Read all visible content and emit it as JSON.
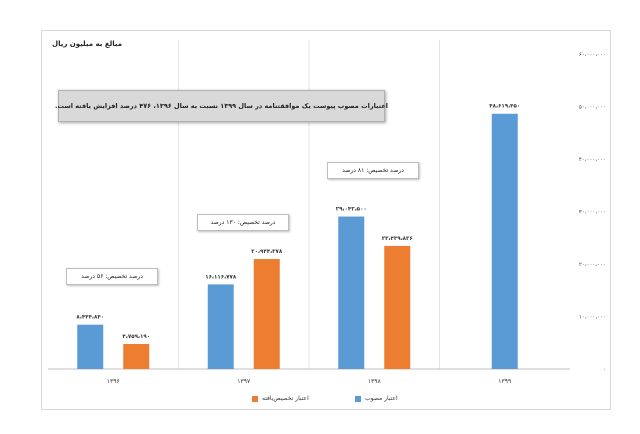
{
  "chart_data": {
    "type": "bar",
    "unit_label": "مبالغ به میلیون ریال",
    "categories": [
      "۱۳۹۶",
      "۱۳۹۷",
      "۱۳۹۸",
      "۱۳۹۹"
    ],
    "series": [
      {
        "name": "اعتبار مصوب",
        "color": "#5b9bd5",
        "values": [
          8444840,
          16116778,
          29042500,
          48619450
        ],
        "labels": [
          "۸،۴۴۴،۸۴۰",
          "۱۶،۱۱۶،۷۷۸",
          "۲۹،۰۴۲،۵۰۰",
          "۴۸،۶۱۹،۴۵۰"
        ]
      },
      {
        "name": "اعتبار تخصیص‌یافته",
        "color": "#ed7d31",
        "values": [
          4759190,
          20944378,
          23439826,
          null
        ],
        "labels": [
          "۴،۷۵۹،۱۹۰",
          "۲۰،۹۴۴،۳۷۸",
          "۲۳،۴۳۹،۸۲۶",
          ""
        ]
      }
    ],
    "ylim": [
      0,
      60000000
    ],
    "yticks": [
      "۰",
      "۱۰،۰۰۰،۰۰۰",
      "۲۰،۰۰۰،۰۰۰",
      "۳۰،۰۰۰،۰۰۰",
      "۴۰،۰۰۰،۰۰۰",
      "۵۰،۰۰۰،۰۰۰",
      "۶۰،۰۰۰،۰۰۰"
    ],
    "ytick_values": [
      0,
      10000000,
      20000000,
      30000000,
      40000000,
      50000000,
      60000000
    ],
    "grid": "vertical-category-lines",
    "legend_position": "bottom",
    "annotations": {
      "main": "اعتبارات مصوب پیوست یک موافقتنامه در سال ۱۳۹۹ نسبت به سال ۱۳۹۶، ۴۷۶ درصد افزایش یافته است.",
      "p1396": "درصد تخصیص: ۵۶ درصد",
      "p1397": "درصد تخصیص: ۱۳۰ درصد",
      "p1398": "درصد تخصیص: ۸۱ درصد"
    }
  }
}
